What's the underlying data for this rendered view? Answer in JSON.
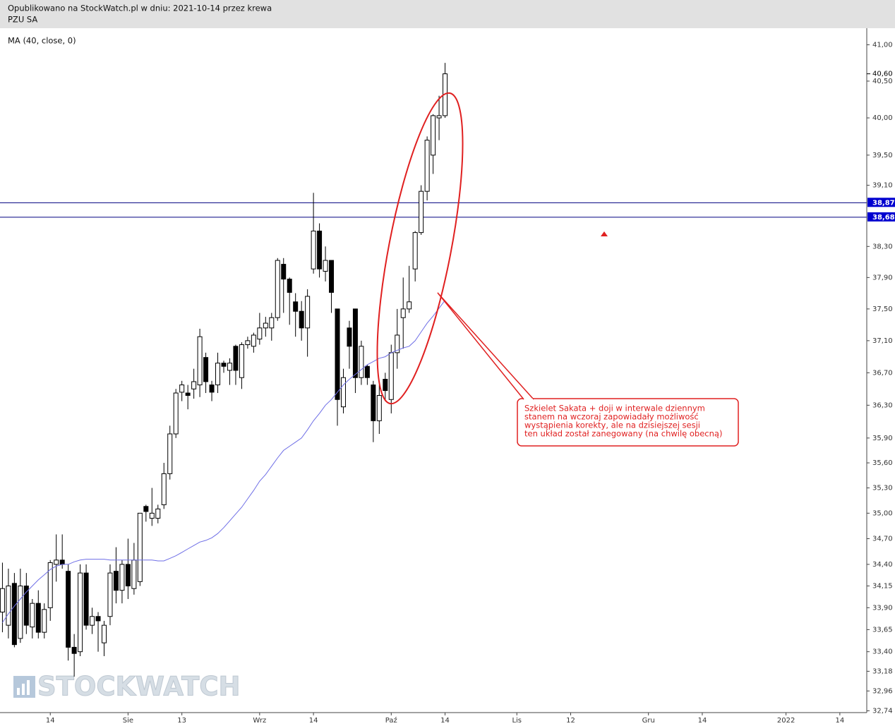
{
  "header": {
    "published": "Opublikowano na StockWatch.pl w dniu: 2021-10-14 przez krewa",
    "instrument": "PZU SA"
  },
  "watermark": "STOCKWATCH",
  "chart_data": {
    "type": "candlestick",
    "log_scale": true,
    "up_color": "#ffffff",
    "down_color": "#000000",
    "categories": [
      null,
      null,
      null,
      null,
      null,
      null,
      null,
      null,
      "14",
      null,
      null,
      null,
      null,
      null,
      null,
      null,
      null,
      null,
      null,
      null,
      null,
      "Sie",
      null,
      null,
      null,
      null,
      null,
      null,
      null,
      null,
      "13",
      null,
      null,
      null,
      null,
      null,
      null,
      null,
      null,
      null,
      null,
      null,
      null,
      "Wrz",
      null,
      null,
      null,
      null,
      null,
      null,
      null,
      null,
      "14",
      null,
      null,
      null,
      null,
      null,
      null,
      null,
      null,
      null,
      null,
      null,
      null,
      "Paź",
      null,
      null,
      null,
      null,
      null,
      null,
      null,
      null,
      "14",
      null,
      null,
      null,
      null,
      null,
      null,
      null,
      null,
      null,
      null,
      null,
      "Lis",
      null,
      null,
      null,
      null,
      null,
      null,
      null,
      null,
      "12",
      null,
      null,
      null,
      null,
      null,
      null,
      null,
      null,
      null,
      null,
      null,
      null,
      "Gru",
      null,
      null,
      null,
      null,
      null,
      null,
      null,
      null,
      "14",
      null,
      null,
      null,
      null,
      null,
      null,
      null,
      null,
      null,
      null,
      null,
      null,
      null,
      "2022",
      null,
      null,
      null,
      null,
      null,
      null,
      null,
      null,
      "14",
      null,
      null,
      null,
      null
    ],
    "open": [
      33.85,
      33.7,
      34.18,
      33.55,
      34.15,
      33.68,
      33.95,
      33.62,
      33.9,
      34.4,
      34.45,
      34.32,
      33.45,
      33.4,
      34.3,
      33.7,
      33.8,
      33.5,
      33.8,
      34.32,
      34.1,
      34.4,
      34.12,
      34.2,
      35.08,
      34.94,
      34.94,
      35.1,
      35.47,
      35.95,
      36.46,
      36.45,
      36.5,
      36.55,
      36.89,
      36.55,
      36.55,
      36.82,
      36.73,
      37.03,
      36.64,
      37.05,
      37.03,
      37.12,
      37.26,
      37.26,
      37.39,
      38.07,
      37.88,
      37.59,
      37.47,
      37.26,
      38.01,
      38.5,
      37.98,
      38.12,
      37.5,
      36.28,
      37.26,
      37.5,
      36.64,
      36.78,
      36.55,
      36.11,
      36.62,
      36.37,
      36.95,
      37.39,
      37.5,
      38.01,
      38.48,
      39.02,
      39.5,
      40.0,
      40.03,
      null,
      null,
      null,
      null,
      null,
      null,
      null,
      null,
      null,
      null,
      null,
      null,
      null,
      null,
      null,
      null,
      null,
      null,
      null,
      null,
      null,
      null,
      null,
      null,
      null,
      null,
      null,
      null,
      null,
      null,
      null,
      null,
      null,
      null,
      null,
      null,
      null,
      null,
      null,
      null,
      null,
      null,
      null,
      null,
      null,
      null,
      null,
      null,
      null,
      null,
      null,
      null,
      null,
      null,
      null,
      null,
      null,
      null,
      null,
      null,
      null,
      null,
      null,
      null,
      null,
      null,
      null,
      null,
      null,
      null
    ],
    "high": [
      34.42,
      34.35,
      34.3,
      34.35,
      34.3,
      34.0,
      34.1,
      33.95,
      34.45,
      34.75,
      34.75,
      34.4,
      33.6,
      34.4,
      34.4,
      33.9,
      33.85,
      33.75,
      34.4,
      34.6,
      34.45,
      34.7,
      34.65,
      35.0,
      35.1,
      35.3,
      35.1,
      35.6,
      36.05,
      36.5,
      36.6,
      36.55,
      36.75,
      37.25,
      36.95,
      36.6,
      36.95,
      36.85,
      36.88,
      37.05,
      37.08,
      37.15,
      37.2,
      37.45,
      37.4,
      37.45,
      38.15,
      38.15,
      37.9,
      37.7,
      37.6,
      37.75,
      39.0,
      38.6,
      38.3,
      38.12,
      37.5,
      36.75,
      37.35,
      37.5,
      37.1,
      36.8,
      36.6,
      36.55,
      36.7,
      37.05,
      37.5,
      37.9,
      38.05,
      38.5,
      39.1,
      39.75,
      40.05,
      40.3,
      40.75,
      null,
      null,
      null,
      null,
      null,
      null,
      null,
      null,
      null,
      null,
      null,
      null,
      null,
      null,
      null,
      null,
      null,
      null,
      null,
      null,
      null,
      null,
      null,
      null,
      null,
      null,
      null,
      null,
      null,
      null,
      null,
      null,
      null,
      null,
      null,
      null,
      null,
      null,
      null,
      null,
      null,
      null,
      null,
      null,
      null,
      null,
      null,
      null,
      null,
      null,
      null,
      null,
      null,
      null,
      null,
      null,
      null,
      null,
      null,
      null,
      null,
      null,
      null,
      null,
      null,
      null,
      null,
      null,
      null,
      null
    ],
    "low": [
      33.62,
      33.55,
      33.45,
      33.5,
      33.6,
      33.55,
      33.55,
      33.55,
      33.75,
      34.2,
      34.35,
      33.3,
      33.12,
      33.35,
      33.65,
      33.6,
      33.4,
      33.35,
      33.7,
      33.95,
      33.95,
      34.0,
      34.05,
      34.15,
      34.9,
      34.85,
      34.88,
      35.05,
      35.4,
      35.9,
      36.35,
      36.25,
      36.38,
      36.4,
      36.45,
      36.35,
      36.45,
      36.7,
      36.55,
      36.55,
      36.5,
      37.0,
      36.95,
      37.05,
      37.15,
      37.1,
      37.35,
      37.45,
      37.3,
      37.15,
      37.1,
      36.9,
      37.95,
      37.9,
      37.85,
      37.45,
      36.05,
      36.2,
      36.75,
      36.45,
      36.55,
      36.55,
      35.85,
      35.95,
      36.35,
      36.2,
      36.75,
      37.0,
      37.45,
      37.85,
      38.45,
      38.9,
      39.25,
      39.7,
      40.0,
      null,
      null,
      null,
      null,
      null,
      null,
      null,
      null,
      null,
      null,
      null,
      null,
      null,
      null,
      null,
      null,
      null,
      null,
      null,
      null,
      null,
      null,
      null,
      null,
      null,
      null,
      null,
      null,
      null,
      null,
      null,
      null,
      null,
      null,
      null,
      null,
      null,
      null,
      null,
      null,
      null,
      null,
      null,
      null,
      null,
      null,
      null,
      null,
      null,
      null,
      null,
      null,
      null,
      null,
      null,
      null,
      null,
      null,
      null,
      null,
      null,
      null,
      null,
      null,
      null,
      null,
      null,
      null,
      null,
      null
    ],
    "close": [
      34.12,
      34.15,
      33.48,
      34.15,
      33.7,
      33.95,
      33.62,
      33.88,
      34.42,
      34.45,
      34.4,
      33.45,
      33.38,
      34.3,
      33.7,
      33.8,
      33.75,
      33.7,
      34.3,
      34.1,
      34.4,
      34.15,
      34.45,
      35.0,
      35.02,
      35.0,
      35.05,
      35.47,
      35.95,
      36.45,
      36.55,
      36.42,
      36.59,
      37.15,
      36.59,
      36.46,
      36.82,
      36.78,
      36.82,
      36.73,
      37.05,
      37.1,
      37.17,
      37.26,
      37.32,
      37.39,
      38.12,
      37.88,
      37.71,
      37.47,
      37.26,
      37.66,
      38.5,
      38.01,
      38.12,
      37.71,
      36.37,
      36.64,
      37.03,
      36.64,
      37.03,
      36.64,
      36.11,
      36.42,
      36.48,
      36.95,
      37.17,
      37.5,
      37.59,
      38.48,
      39.02,
      39.7,
      40.03,
      40.03,
      40.6,
      null,
      null,
      null,
      null,
      null,
      null,
      null,
      null,
      null,
      null,
      null,
      null,
      null,
      null,
      null,
      null,
      null,
      null,
      null,
      null,
      null,
      null,
      null,
      null,
      null,
      null,
      null,
      null,
      null,
      null,
      null,
      null,
      null,
      null,
      null,
      null,
      null,
      null,
      null,
      null,
      null,
      null,
      null,
      null,
      null,
      null,
      null,
      null,
      null,
      null,
      null,
      null,
      null,
      null,
      null,
      null,
      null,
      null,
      null,
      null,
      null,
      null,
      null,
      null,
      null,
      null,
      null,
      null,
      null,
      null
    ],
    "series": [
      {
        "name": "MA (40, close, 0)",
        "color": "#6e6ee6",
        "values": [
          33.73,
          33.83,
          33.92,
          34.0,
          34.08,
          34.15,
          34.22,
          34.28,
          34.34,
          34.38,
          34.4,
          34.4,
          34.43,
          34.45,
          34.46,
          34.46,
          34.46,
          34.46,
          34.45,
          34.45,
          34.45,
          34.45,
          34.45,
          34.45,
          34.45,
          34.45,
          34.44,
          34.44,
          34.47,
          34.5,
          34.54,
          34.58,
          34.62,
          34.66,
          34.68,
          34.71,
          34.76,
          34.83,
          34.91,
          34.99,
          35.07,
          35.17,
          35.27,
          35.38,
          35.46,
          35.56,
          35.66,
          35.75,
          35.8,
          35.85,
          35.9,
          36.0,
          36.11,
          36.2,
          36.3,
          36.37,
          36.46,
          36.55,
          36.62,
          36.68,
          36.74,
          36.8,
          36.84,
          36.88,
          36.9,
          36.95,
          36.98,
          37.01,
          37.03,
          37.1,
          37.21,
          37.32,
          37.41,
          37.51,
          37.61,
          null,
          null,
          null,
          null,
          null,
          null,
          null,
          null,
          null,
          null,
          null,
          null,
          null,
          null,
          null,
          null,
          null,
          null,
          null,
          null,
          null,
          null,
          null,
          null,
          null,
          null,
          null,
          null,
          null,
          null,
          null,
          null,
          null,
          null,
          null,
          null,
          null,
          null,
          null,
          null,
          null,
          null,
          null,
          null,
          null,
          null,
          null,
          null,
          null,
          null,
          null,
          null,
          null,
          null,
          null,
          null,
          null,
          null,
          null,
          null,
          null,
          null,
          null,
          null,
          null,
          null,
          null,
          null,
          null,
          null
        ]
      }
    ],
    "ylim": [
      32.72,
      41.23
    ],
    "yticks": [
      {
        "value": 41,
        "label": "41,00"
      },
      {
        "value": 40.5,
        "label": "40,50"
      },
      {
        "value": 40,
        "label": "40,00"
      },
      {
        "value": 39.5,
        "label": "39,50"
      },
      {
        "value": 39.1,
        "label": "39,10"
      },
      {
        "value": 38.3,
        "label": "38,30"
      },
      {
        "value": 37.9,
        "label": "37,90"
      },
      {
        "value": 37.5,
        "label": "37,50"
      },
      {
        "value": 37.1,
        "label": "37,10"
      },
      {
        "value": 36.7,
        "label": "36,70"
      },
      {
        "value": 36.3,
        "label": "36,30"
      },
      {
        "value": 35.9,
        "label": "35,90"
      },
      {
        "value": 35.6,
        "label": "35,60"
      },
      {
        "value": 35.3,
        "label": "35,30"
      },
      {
        "value": 35,
        "label": "35,00"
      },
      {
        "value": 34.7,
        "label": "34,70"
      },
      {
        "value": 34.4,
        "label": "34,40"
      },
      {
        "value": 34.15,
        "label": "34,15"
      },
      {
        "value": 33.9,
        "label": "33,90"
      },
      {
        "value": 33.65,
        "label": "33,65"
      },
      {
        "value": 33.4,
        "label": "33,40"
      },
      {
        "value": 33.18,
        "label": "33,18"
      },
      {
        "value": 32.96,
        "label": "32,96"
      },
      {
        "value": 32.74,
        "label": "32,74"
      }
    ],
    "hlines": [
      {
        "value": 38.87,
        "label": "38,87",
        "color": "#000080"
      },
      {
        "value": 38.68,
        "label": "38,68",
        "color": "#000080"
      }
    ],
    "last_price": {
      "value": 40.6,
      "label": "40,60"
    },
    "annotation": {
      "color": "#e02020",
      "lines": [
        "Szkielet Sakata + doji w interwale dziennym",
        "stanem na wczoraj zapowiadały możliwość",
        "wystąpienia korekty, ale na dzisiejszej sesji",
        "ten układ został zanegowany (na chwilę obecną)"
      ]
    }
  }
}
